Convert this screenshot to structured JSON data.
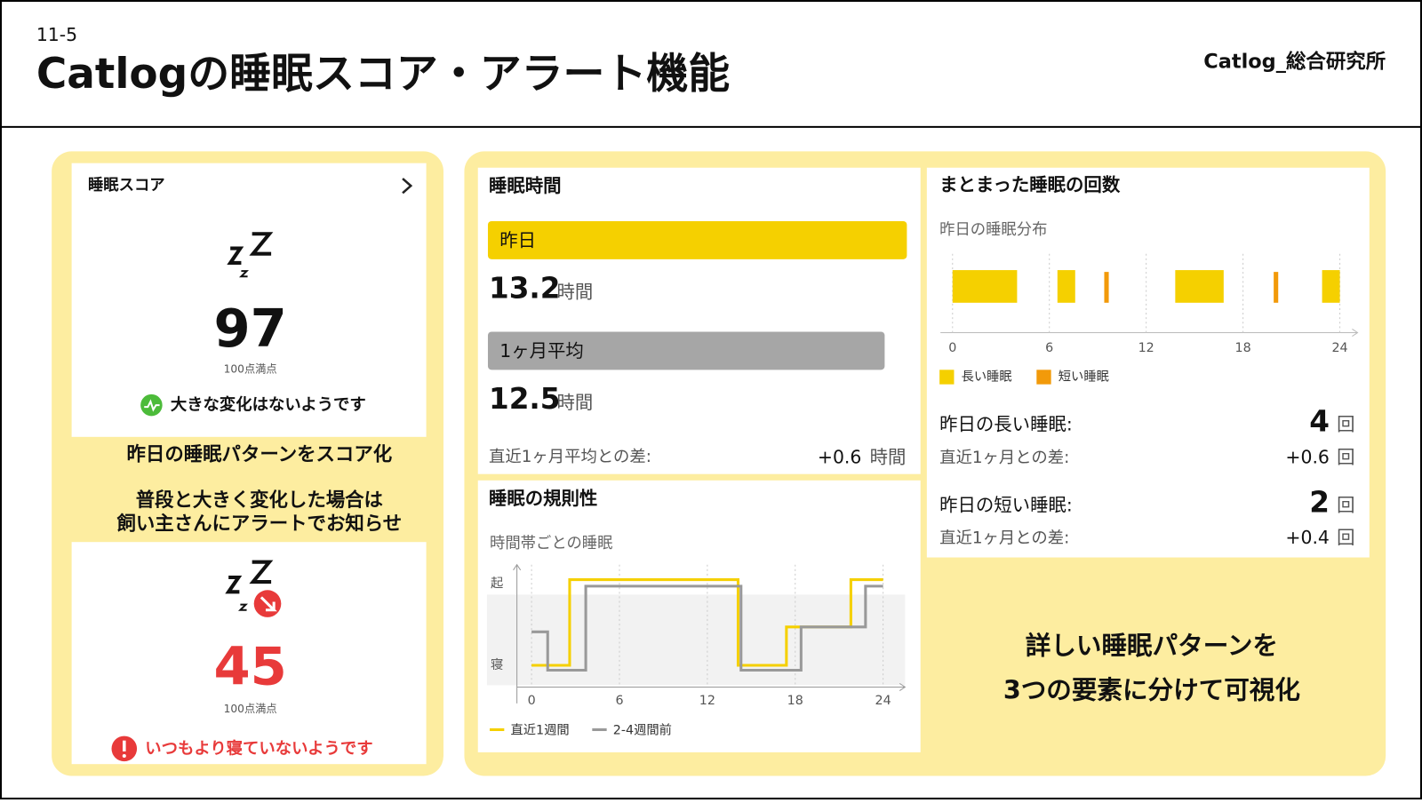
{
  "header": {
    "section": "11-5",
    "title": "Catlogの睡眠スコア・アラート機能",
    "brand": "Catlog_総合研究所"
  },
  "score_panel": {
    "title": "睡眠スコア",
    "normal": {
      "score": 97,
      "max_label": "100点満点",
      "status": "大きな変化はないようです"
    },
    "captions": [
      "昨日の睡眠パターンをスコア化",
      "普段と大きく変化した場合は",
      "飼い主さんにアラートでお知らせ"
    ],
    "alert": {
      "score": 45,
      "max_label": "100点満点",
      "status": "いつもより寝ていないようです"
    }
  },
  "duration_panel": {
    "title": "睡眠時間",
    "yesterday": {
      "label": "昨日",
      "value": 13.2,
      "unit": "時間"
    },
    "average": {
      "label": "1ヶ月平均",
      "value": 12.5,
      "unit": "時間"
    },
    "difference": {
      "label": "直近1ヶ月平均との差:",
      "value": "+0.6",
      "unit": "時間"
    }
  },
  "count_panel": {
    "title": "まとまった睡眠の回数",
    "long": {
      "label": "昨日の長い睡眠:",
      "value": 4,
      "unit": "回",
      "diff_label": "直近1ヶ月との差:",
      "diff": "+0.6",
      "diff_unit": "回"
    },
    "short": {
      "label": "昨日の短い睡眠:",
      "value": 2,
      "unit": "回",
      "diff_label": "直近1ヶ月との差:",
      "diff": "+0.4",
      "diff_unit": "回"
    }
  },
  "footer_caption": [
    "詳しい睡眠パターンを",
    "3つの要素に分けて可視化"
  ],
  "chart_data": [
    {
      "type": "line",
      "title": "睡眠の規則性",
      "subtitle": "時間帯ごとの睡眠",
      "xlim": [
        -1,
        25.5
      ],
      "xticks": [
        0,
        6,
        12,
        18,
        24
      ],
      "ylim": [
        -0.25,
        1.25
      ],
      "yticks": [
        {
          "value": 1,
          "label": "起"
        },
        {
          "value": 0,
          "label": "寝"
        }
      ],
      "grid": true,
      "series": [
        {
          "name": "直近1週間",
          "color": "#f5d000",
          "x": [
            0,
            2.6,
            2.6,
            14.1,
            14.1,
            17.4,
            17.4,
            21.8,
            21.8,
            24
          ],
          "values": [
            0,
            0,
            1.05,
            1.05,
            0,
            0,
            0.47,
            0.47,
            1.05,
            1.05
          ]
        },
        {
          "name": "2-4週間前",
          "color": "#999999",
          "x": [
            0,
            1.1,
            1.1,
            3.7,
            3.7,
            14.3,
            14.3,
            18.4,
            18.4,
            22.8,
            22.8,
            24
          ],
          "values": [
            0.41,
            0.41,
            -0.06,
            -0.06,
            0.97,
            0.97,
            -0.06,
            -0.06,
            0.47,
            0.47,
            0.97,
            0.97
          ]
        }
      ]
    },
    {
      "type": "timeline",
      "title": "昨日の睡眠分布",
      "xlim": [
        -0.75,
        25.1
      ],
      "xticks": [
        0,
        6,
        12,
        18,
        24
      ],
      "grid": true,
      "series": [
        {
          "name": "長い睡眠",
          "color": "#f5d000",
          "start": [
            0,
            6.5,
            13.8,
            22.9
          ],
          "end": [
            4,
            7.6,
            16.8,
            24
          ]
        },
        {
          "name": "短い睡眠",
          "color": "#f29a0a",
          "start": [
            9.4,
            19.9
          ],
          "end": [
            9.6,
            20.1
          ]
        }
      ]
    }
  ]
}
